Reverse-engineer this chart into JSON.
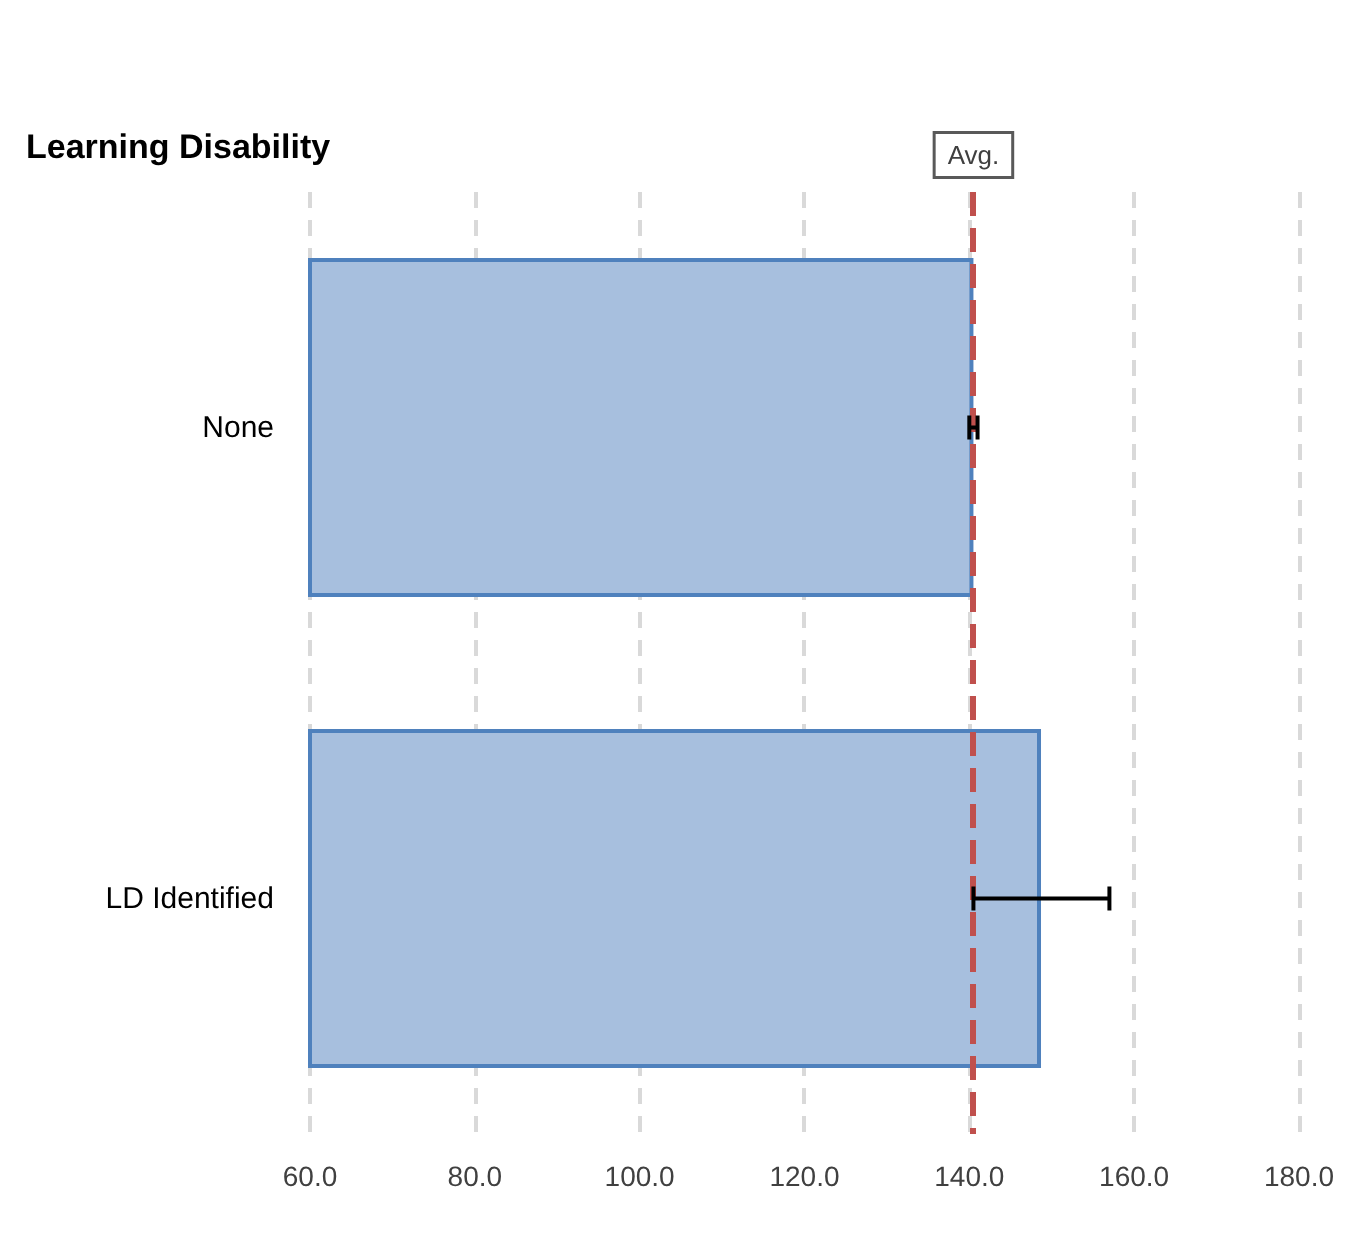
{
  "chart_data": {
    "type": "bar",
    "orientation": "horizontal",
    "title": "Learning Disability",
    "categories": [
      "None",
      "LD Identified"
    ],
    "values": [
      140.5,
      148.7
    ],
    "errors": [
      [
        140.0,
        141.0
      ],
      [
        140.5,
        157.0
      ]
    ],
    "color": "#a7bfde",
    "xlim": [
      60,
      180
    ],
    "xticks": [
      {
        "value": 60,
        "label": "60.0"
      },
      {
        "value": 80,
        "label": "80.0"
      },
      {
        "value": 100,
        "label": "100.0"
      },
      {
        "value": 120,
        "label": "120.0"
      },
      {
        "value": 140,
        "label": "140.0"
      },
      {
        "value": 160,
        "label": "160.0"
      },
      {
        "value": 180,
        "label": "180.0"
      }
    ],
    "grid": "x",
    "ref_lines": [
      {
        "axis": "x",
        "value": 140.5,
        "label": "Avg.",
        "color": "#c0504d",
        "line_style": "dashed"
      }
    ]
  }
}
